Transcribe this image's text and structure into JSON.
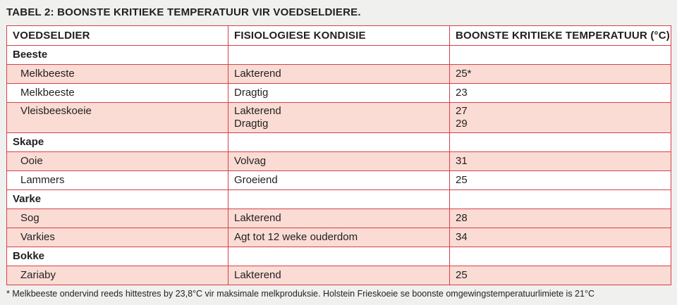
{
  "title": "TABEL 2: BOONSTE KRITIEKE TEMPERATUUR VIR VOEDSELDIERE.",
  "headers": [
    "VOEDSELDIER",
    "FISIOLOGIESE KONDISIE",
    "BOONSTE KRITIEKE TEMPERATUUR (°C)"
  ],
  "groups": [
    {
      "name": "Beeste",
      "rows": [
        {
          "animal": "Melkbeeste",
          "condition": [
            "Lakterend"
          ],
          "temp": [
            "25*"
          ]
        },
        {
          "animal": "Melkbeeste",
          "condition": [
            "Dragtig"
          ],
          "temp": [
            "23"
          ]
        },
        {
          "animal": "Vleisbeeskoeie",
          "condition": [
            "Lakterend",
            "Dragtig"
          ],
          "temp": [
            "27",
            "29"
          ]
        }
      ]
    },
    {
      "name": "Skape",
      "rows": [
        {
          "animal": "Ooie",
          "condition": [
            "Volvag"
          ],
          "temp": [
            "31"
          ]
        },
        {
          "animal": "Lammers",
          "condition": [
            "Groeiend"
          ],
          "temp": [
            "25"
          ]
        }
      ]
    },
    {
      "name": "Varke",
      "rows": [
        {
          "animal": "Sog",
          "condition": [
            "Lakterend"
          ],
          "temp": [
            "28"
          ]
        },
        {
          "animal": "Varkies",
          "condition": [
            "Agt tot 12 weke ouderdom"
          ],
          "temp": [
            "34"
          ]
        }
      ]
    },
    {
      "name": "Bokke",
      "rows": [
        {
          "animal": "Zariaby",
          "condition": [
            "Lakterend"
          ],
          "temp": [
            "25"
          ]
        }
      ]
    }
  ],
  "footnote": "* Melkbeeste ondervind reeds hittestres by 23,8°C vir maksimale melkproduksie. Holstein Frieskoeie se boonste omgewingstemperatuurlimiete is 21°C",
  "colors": {
    "border": "#d7404a",
    "row_shade": "#fadcd4",
    "page_bg": "#f0f0ee"
  }
}
